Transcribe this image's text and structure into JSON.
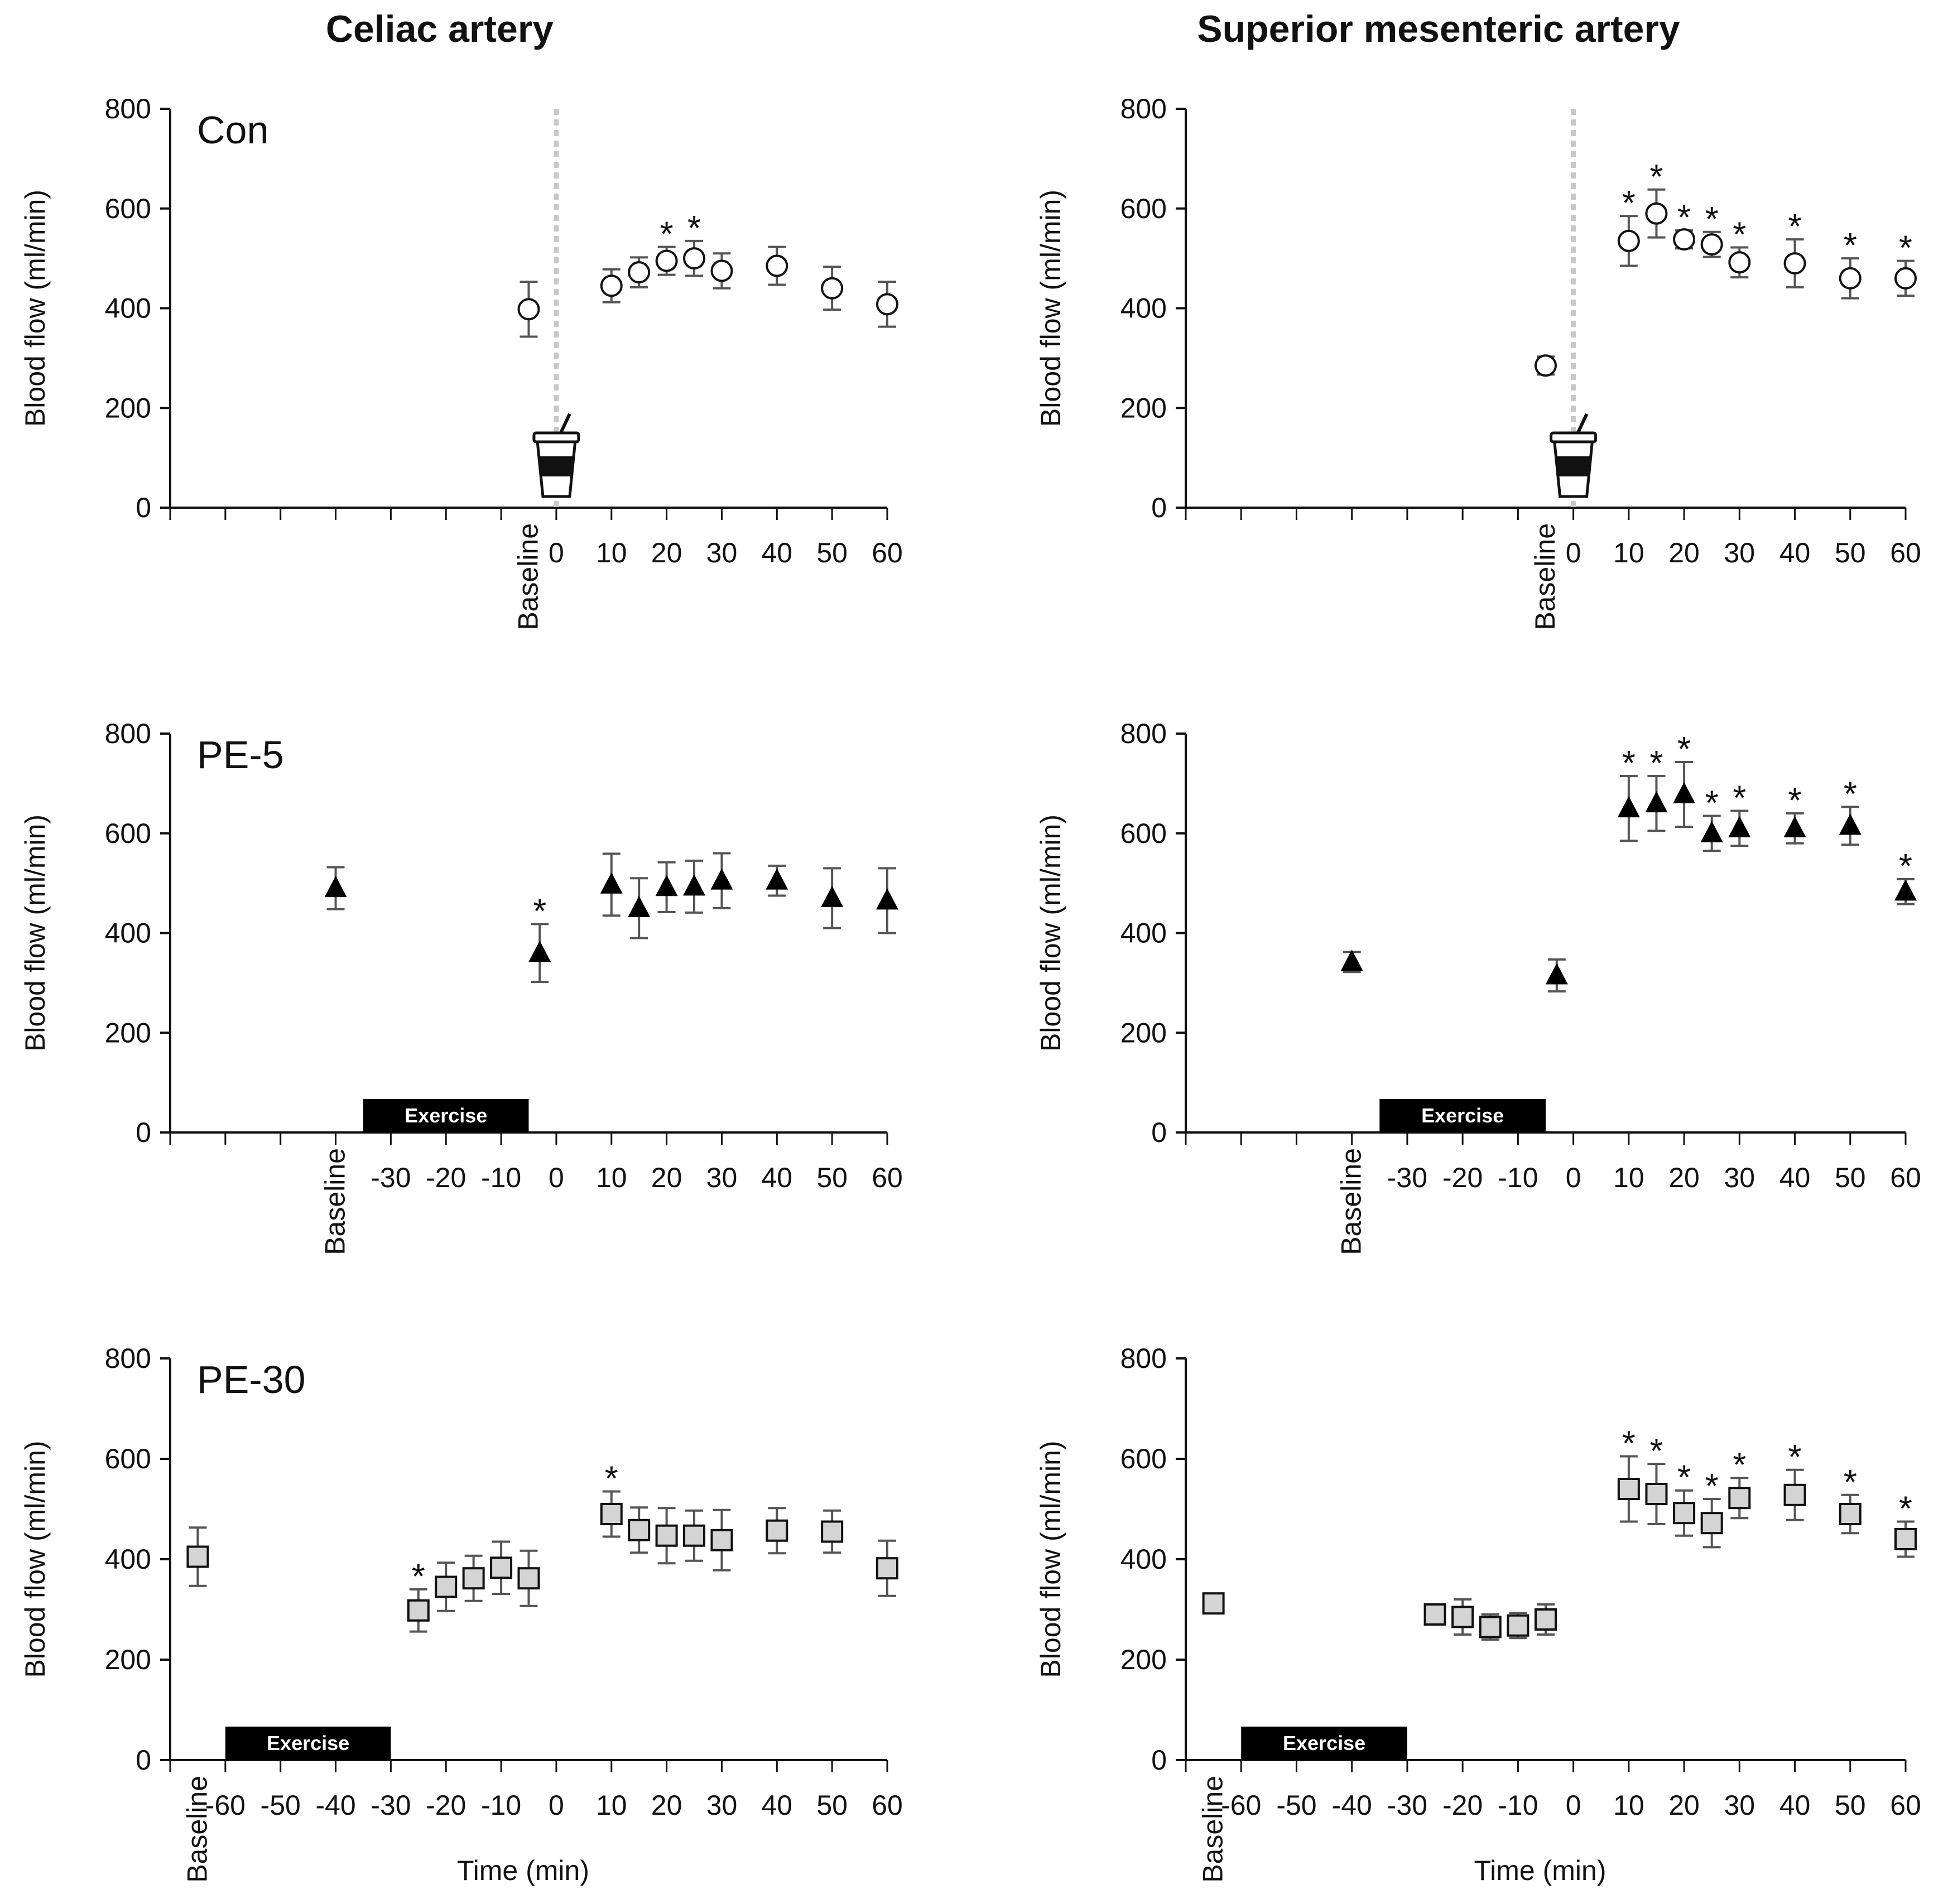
{
  "figure": {
    "column_titles": [
      "Celiac artery",
      "Superior mesenteric artery"
    ],
    "ylabel": "Blood flow (ml/min)",
    "xlabel": "Time (min)",
    "exercise_label": "Exercise",
    "baseline_label": "Baseline"
  },
  "chart_data": [
    {
      "type": "scatter",
      "row": 0,
      "col": 0,
      "label": "Con",
      "marker": "circle",
      "ylim": [
        0,
        800
      ],
      "yticks": [
        0,
        200,
        400,
        600,
        800
      ],
      "xticks": [
        0,
        10,
        20,
        30,
        40,
        50,
        60
      ],
      "x_min": -70,
      "x_max": 60,
      "baseline_x": -5,
      "marker_line_x": 0,
      "meal_icon": true,
      "exercise": null,
      "points": [
        {
          "x": -5,
          "y": 398,
          "err": 55,
          "sig": false
        },
        {
          "x": 10,
          "y": 445,
          "err": 33,
          "sig": false
        },
        {
          "x": 15,
          "y": 472,
          "err": 30,
          "sig": false
        },
        {
          "x": 20,
          "y": 495,
          "err": 28,
          "sig": true
        },
        {
          "x": 25,
          "y": 500,
          "err": 35,
          "sig": true
        },
        {
          "x": 30,
          "y": 475,
          "err": 35,
          "sig": false
        },
        {
          "x": 40,
          "y": 485,
          "err": 38,
          "sig": false
        },
        {
          "x": 50,
          "y": 440,
          "err": 43,
          "sig": false
        },
        {
          "x": 60,
          "y": 408,
          "err": 45,
          "sig": false
        }
      ]
    },
    {
      "type": "scatter",
      "row": 0,
      "col": 1,
      "label": "",
      "marker": "circle",
      "ylim": [
        0,
        800
      ],
      "yticks": [
        0,
        200,
        400,
        600,
        800
      ],
      "xticks": [
        0,
        10,
        20,
        30,
        40,
        50,
        60
      ],
      "x_min": -70,
      "x_max": 60,
      "baseline_x": -5,
      "marker_line_x": 0,
      "meal_icon": true,
      "exercise": null,
      "points": [
        {
          "x": -5,
          "y": 285,
          "err": 18,
          "sig": false
        },
        {
          "x": 10,
          "y": 535,
          "err": 50,
          "sig": true
        },
        {
          "x": 15,
          "y": 590,
          "err": 48,
          "sig": true
        },
        {
          "x": 20,
          "y": 538,
          "err": 18,
          "sig": true
        },
        {
          "x": 25,
          "y": 528,
          "err": 25,
          "sig": true
        },
        {
          "x": 30,
          "y": 492,
          "err": 30,
          "sig": true
        },
        {
          "x": 40,
          "y": 490,
          "err": 48,
          "sig": true
        },
        {
          "x": 50,
          "y": 460,
          "err": 40,
          "sig": true
        },
        {
          "x": 60,
          "y": 460,
          "err": 35,
          "sig": true
        }
      ]
    },
    {
      "type": "scatter",
      "row": 1,
      "col": 0,
      "label": "PE-5",
      "marker": "triangle",
      "ylim": [
        0,
        800
      ],
      "yticks": [
        0,
        200,
        400,
        600,
        800
      ],
      "xticks": [
        -30,
        -20,
        -10,
        0,
        10,
        20,
        30,
        40,
        50,
        60
      ],
      "x_min": -70,
      "x_max": 60,
      "baseline_x": -40,
      "marker_line_x": null,
      "meal_icon": false,
      "exercise": [
        -35,
        -5
      ],
      "points": [
        {
          "x": -40,
          "y": 490,
          "err": 42,
          "sig": false
        },
        {
          "x": -3,
          "y": 360,
          "err": 58,
          "sig": true
        },
        {
          "x": 10,
          "y": 497,
          "err": 62,
          "sig": false
        },
        {
          "x": 15,
          "y": 450,
          "err": 60,
          "sig": false
        },
        {
          "x": 20,
          "y": 492,
          "err": 50,
          "sig": false
        },
        {
          "x": 25,
          "y": 493,
          "err": 52,
          "sig": false
        },
        {
          "x": 30,
          "y": 505,
          "err": 55,
          "sig": false
        },
        {
          "x": 40,
          "y": 505,
          "err": 30,
          "sig": false
        },
        {
          "x": 50,
          "y": 470,
          "err": 60,
          "sig": false
        },
        {
          "x": 60,
          "y": 465,
          "err": 65,
          "sig": false
        }
      ]
    },
    {
      "type": "scatter",
      "row": 1,
      "col": 1,
      "label": "",
      "marker": "triangle",
      "ylim": [
        0,
        800
      ],
      "yticks": [
        0,
        200,
        400,
        600,
        800
      ],
      "xticks": [
        -30,
        -20,
        -10,
        0,
        10,
        20,
        30,
        40,
        50,
        60
      ],
      "x_min": -70,
      "x_max": 60,
      "baseline_x": -40,
      "marker_line_x": null,
      "meal_icon": false,
      "exercise": [
        -35,
        -5
      ],
      "points": [
        {
          "x": -40,
          "y": 342,
          "err": 20,
          "sig": false
        },
        {
          "x": -3,
          "y": 315,
          "err": 32,
          "sig": false
        },
        {
          "x": 10,
          "y": 650,
          "err": 65,
          "sig": true
        },
        {
          "x": 15,
          "y": 660,
          "err": 55,
          "sig": true
        },
        {
          "x": 20,
          "y": 678,
          "err": 65,
          "sig": true
        },
        {
          "x": 25,
          "y": 600,
          "err": 35,
          "sig": true
        },
        {
          "x": 30,
          "y": 610,
          "err": 35,
          "sig": true
        },
        {
          "x": 40,
          "y": 610,
          "err": 30,
          "sig": true
        },
        {
          "x": 50,
          "y": 615,
          "err": 38,
          "sig": true
        },
        {
          "x": 60,
          "y": 483,
          "err": 25,
          "sig": true
        }
      ]
    },
    {
      "type": "scatter",
      "row": 2,
      "col": 0,
      "label": "PE-30",
      "marker": "square",
      "ylim": [
        0,
        800
      ],
      "yticks": [
        0,
        200,
        400,
        600,
        800
      ],
      "xticks": [
        -60,
        -50,
        -40,
        -30,
        -20,
        -10,
        0,
        10,
        20,
        30,
        40,
        50,
        60
      ],
      "x_min": -70,
      "x_max": 60,
      "baseline_x": -65,
      "marker_line_x": null,
      "meal_icon": false,
      "exercise": [
        -60,
        -30
      ],
      "points": [
        {
          "x": -65,
          "y": 405,
          "err": 58,
          "sig": false
        },
        {
          "x": -25,
          "y": 298,
          "err": 42,
          "sig": true
        },
        {
          "x": -20,
          "y": 345,
          "err": 48,
          "sig": false
        },
        {
          "x": -15,
          "y": 362,
          "err": 45,
          "sig": false
        },
        {
          "x": -10,
          "y": 383,
          "err": 52,
          "sig": false
        },
        {
          "x": -5,
          "y": 362,
          "err": 55,
          "sig": false
        },
        {
          "x": 10,
          "y": 490,
          "err": 45,
          "sig": true
        },
        {
          "x": 15,
          "y": 458,
          "err": 45,
          "sig": false
        },
        {
          "x": 20,
          "y": 447,
          "err": 55,
          "sig": false
        },
        {
          "x": 25,
          "y": 447,
          "err": 50,
          "sig": false
        },
        {
          "x": 30,
          "y": 438,
          "err": 60,
          "sig": false
        },
        {
          "x": 40,
          "y": 457,
          "err": 45,
          "sig": false
        },
        {
          "x": 50,
          "y": 455,
          "err": 42,
          "sig": false
        },
        {
          "x": 60,
          "y": 382,
          "err": 55,
          "sig": false
        }
      ]
    },
    {
      "type": "scatter",
      "row": 2,
      "col": 1,
      "label": "",
      "marker": "square",
      "ylim": [
        0,
        800
      ],
      "yticks": [
        0,
        200,
        400,
        600,
        800
      ],
      "xticks": [
        -60,
        -50,
        -40,
        -30,
        -20,
        -10,
        0,
        10,
        20,
        30,
        40,
        50,
        60
      ],
      "x_min": -70,
      "x_max": 60,
      "baseline_x": -65,
      "marker_line_x": null,
      "meal_icon": false,
      "exercise": [
        -60,
        -30
      ],
      "points": [
        {
          "x": -65,
          "y": 312,
          "err": 15,
          "sig": false
        },
        {
          "x": -25,
          "y": 290,
          "err": 18,
          "sig": false
        },
        {
          "x": -20,
          "y": 285,
          "err": 35,
          "sig": false
        },
        {
          "x": -15,
          "y": 265,
          "err": 25,
          "sig": false
        },
        {
          "x": -10,
          "y": 268,
          "err": 25,
          "sig": false
        },
        {
          "x": -5,
          "y": 280,
          "err": 30,
          "sig": false
        },
        {
          "x": 10,
          "y": 540,
          "err": 65,
          "sig": true
        },
        {
          "x": 15,
          "y": 530,
          "err": 60,
          "sig": true
        },
        {
          "x": 20,
          "y": 492,
          "err": 45,
          "sig": true
        },
        {
          "x": 25,
          "y": 472,
          "err": 48,
          "sig": true
        },
        {
          "x": 30,
          "y": 522,
          "err": 40,
          "sig": true
        },
        {
          "x": 40,
          "y": 528,
          "err": 50,
          "sig": true
        },
        {
          "x": 50,
          "y": 490,
          "err": 38,
          "sig": true
        },
        {
          "x": 60,
          "y": 440,
          "err": 35,
          "sig": true
        }
      ]
    }
  ]
}
